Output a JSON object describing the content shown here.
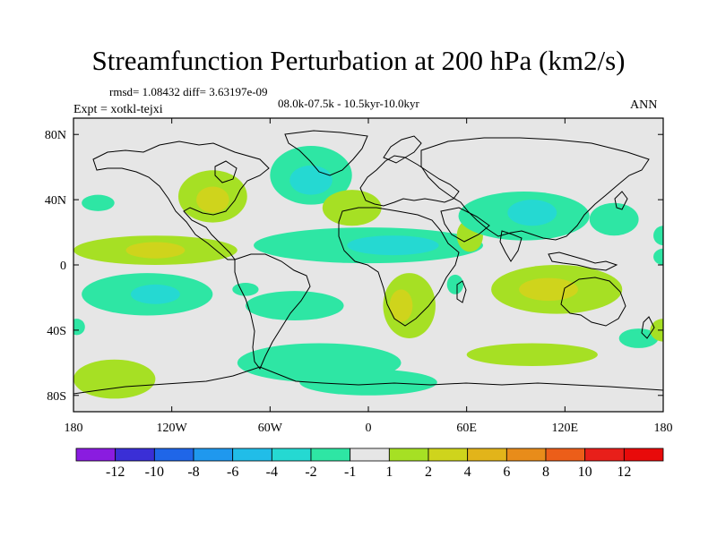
{
  "chart_data": {
    "type": "contour-map",
    "title": "Streamfunction Perturbation at 200 hPa (km2/s)",
    "stats": "rmsd= 1.08432 diff= 3.63197e-09",
    "experiment": "Expt = xotkl-tejxi",
    "period": "08.0k-07.5k - 10.5kyr-10.0kyr",
    "season": "ANN",
    "xlim": [
      -180,
      180
    ],
    "ylim": [
      -90,
      90
    ],
    "x_ticks": [
      {
        "value": -180,
        "label": "180"
      },
      {
        "value": -120,
        "label": "120W"
      },
      {
        "value": -60,
        "label": "60W"
      },
      {
        "value": 0,
        "label": "0"
      },
      {
        "value": 60,
        "label": "60E"
      },
      {
        "value": 120,
        "label": "120E"
      },
      {
        "value": 180,
        "label": "180"
      }
    ],
    "y_ticks": [
      {
        "value": 80,
        "label": "80N"
      },
      {
        "value": 40,
        "label": "40N"
      },
      {
        "value": 0,
        "label": "0"
      },
      {
        "value": -40,
        "label": "40S"
      },
      {
        "value": -80,
        "label": "80S"
      }
    ],
    "colorbar": {
      "labels": [
        "-12",
        "-10",
        "-8",
        "-6",
        "-4",
        "-2",
        "-1",
        "1",
        "2",
        "4",
        "6",
        "8",
        "10",
        "12"
      ],
      "colors": [
        "#8a1ce0",
        "#3a2fd6",
        "#1f66e8",
        "#1f98ee",
        "#21bde8",
        "#25d9d2",
        "#2ee6a4",
        "#e6e6e6",
        "#a6e024",
        "#cfd41c",
        "#e2b41a",
        "#e88c1a",
        "#ec5e19",
        "#e81f1a",
        "#e80a0a"
      ]
    },
    "regions": [
      {
        "name": "n-pacific-west",
        "level": "-1",
        "lon": -165,
        "lat": 38,
        "rx": 10,
        "ry": 5
      },
      {
        "name": "n-america-positive",
        "level": "1",
        "lon": -95,
        "lat": 42,
        "rx": 21,
        "ry": 16
      },
      {
        "name": "n-america-core",
        "level": "2",
        "lon": -95,
        "lat": 40,
        "rx": 10,
        "ry": 8
      },
      {
        "name": "n-atlantic-negative",
        "level": "-1",
        "lon": -35,
        "lat": 55,
        "rx": 25,
        "ry": 18
      },
      {
        "name": "n-atlantic-core",
        "level": "-2",
        "lon": -35,
        "lat": 52,
        "rx": 13,
        "ry": 9
      },
      {
        "name": "e-atlantic-positive",
        "level": "1",
        "lon": -10,
        "lat": 35,
        "rx": 18,
        "ry": 11
      },
      {
        "name": "e-pacific-tropics",
        "level": "1",
        "lon": -130,
        "lat": 9,
        "rx": 50,
        "ry": 9
      },
      {
        "name": "e-pacific-tropics-core",
        "level": "2",
        "lon": -130,
        "lat": 9,
        "rx": 18,
        "ry": 5
      },
      {
        "name": "tropical-atlantic-negative",
        "level": "-1",
        "lon": 0,
        "lat": 12,
        "rx": 70,
        "ry": 11
      },
      {
        "name": "tropical-atlantic-core",
        "level": "-2",
        "lon": 15,
        "lat": 12,
        "rx": 28,
        "ry": 6
      },
      {
        "name": "arabia-positive",
        "level": "1",
        "lon": 62,
        "lat": 18,
        "rx": 8,
        "ry": 10
      },
      {
        "name": "asia-negative",
        "level": "-1",
        "lon": 95,
        "lat": 30,
        "rx": 40,
        "ry": 15
      },
      {
        "name": "asia-core",
        "level": "-2",
        "lon": 100,
        "lat": 32,
        "rx": 15,
        "ry": 8
      },
      {
        "name": "w-pacific-negative",
        "level": "-1",
        "lon": 150,
        "lat": 28,
        "rx": 15,
        "ry": 10
      },
      {
        "name": "date-line-tropics",
        "level": "-1",
        "lon": 180,
        "lat": 5,
        "rx": 6,
        "ry": 5
      },
      {
        "name": "s-pacific-negative",
        "level": "-1",
        "lon": -135,
        "lat": -18,
        "rx": 40,
        "ry": 13
      },
      {
        "name": "s-pacific-core",
        "level": "-2",
        "lon": -130,
        "lat": -18,
        "rx": 15,
        "ry": 6
      },
      {
        "name": "s-america-small",
        "level": "-1",
        "lon": -75,
        "lat": -15,
        "rx": 8,
        "ry": 4
      },
      {
        "name": "s-atlantic-negative",
        "level": "-1",
        "lon": -45,
        "lat": -25,
        "rx": 30,
        "ry": 9
      },
      {
        "name": "s-africa-positive",
        "level": "1",
        "lon": 25,
        "lat": -25,
        "rx": 16,
        "ry": 20
      },
      {
        "name": "s-africa-core",
        "level": "2",
        "lon": 20,
        "lat": -25,
        "rx": 7,
        "ry": 10
      },
      {
        "name": "madagascar-negative",
        "level": "-1",
        "lon": 53,
        "lat": -12,
        "rx": 5,
        "ry": 6
      },
      {
        "name": "indian-ocean-positive",
        "level": "1",
        "lon": 115,
        "lat": -15,
        "rx": 40,
        "ry": 15
      },
      {
        "name": "indian-ocean-core",
        "level": "2",
        "lon": 110,
        "lat": -15,
        "rx": 18,
        "ry": 7
      },
      {
        "name": "ne-australia-negative",
        "level": "-1",
        "lon": 165,
        "lat": -45,
        "rx": 12,
        "ry": 6
      },
      {
        "name": "far-east-positive",
        "level": "1",
        "lon": 180,
        "lat": -40,
        "rx": 8,
        "ry": 7
      },
      {
        "name": "west-edge-negative",
        "level": "-1",
        "lon": -178,
        "lat": -38,
        "rx": 5,
        "ry": 5
      },
      {
        "name": "s-ocean-pacific-positive",
        "level": "1",
        "lon": -155,
        "lat": -70,
        "rx": 25,
        "ry": 12
      },
      {
        "name": "s-ocean-atlantic-negative",
        "level": "-1",
        "lon": -30,
        "lat": -60,
        "rx": 50,
        "ry": 12
      },
      {
        "name": "antarctic-belt-negative",
        "level": "-1",
        "lon": 0,
        "lat": -72,
        "rx": 42,
        "ry": 8
      },
      {
        "name": "s-indian-positive",
        "level": "1",
        "lon": 100,
        "lat": -55,
        "rx": 40,
        "ry": 7
      },
      {
        "name": "date-line-far-east",
        "level": "-1",
        "lon": 180,
        "lat": 18,
        "rx": 6,
        "ry": 6
      }
    ]
  }
}
